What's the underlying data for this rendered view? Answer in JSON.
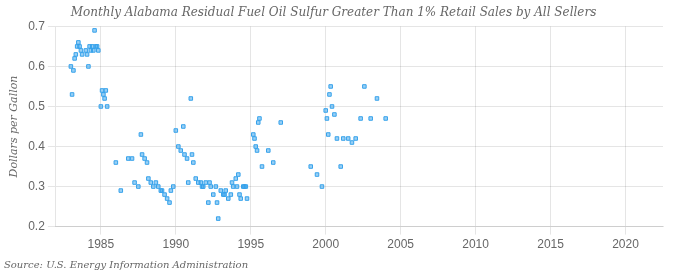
{
  "chart_data": {
    "type": "scatter",
    "title": "Monthly Alabama Residual Fuel Oil Sulfur Greater Than 1% Retail Sales by All Sellers",
    "ylabel": "Dollars per Gallon",
    "annotation": "Source: U.S. Energy Information Administration",
    "marker": "square",
    "grid": true,
    "xlim": [
      1982.0,
      2022.5
    ],
    "ylim": [
      0.2,
      0.7
    ],
    "xticks": [
      1985,
      1990,
      1995,
      2000,
      2005,
      2010,
      2015,
      2020
    ],
    "yticks": [
      0.2,
      0.3,
      0.4,
      0.5,
      0.6,
      0.7
    ],
    "x": [
      1983.0,
      1983.08,
      1983.17,
      1983.25,
      1983.33,
      1983.42,
      1983.5,
      1983.58,
      1983.67,
      1983.75,
      1984.0,
      1984.08,
      1984.17,
      1984.25,
      1984.33,
      1984.42,
      1984.5,
      1984.58,
      1984.67,
      1984.75,
      1984.83,
      1985.0,
      1985.08,
      1985.17,
      1985.25,
      1985.33,
      1985.42,
      1986.0,
      1986.33,
      1986.83,
      1987.08,
      1987.25,
      1987.5,
      1987.67,
      1987.75,
      1987.92,
      1988.08,
      1988.17,
      1988.33,
      1988.5,
      1988.67,
      1988.83,
      1989.0,
      1989.08,
      1989.25,
      1989.42,
      1989.58,
      1989.67,
      1989.83,
      1990.0,
      1990.17,
      1990.33,
      1990.5,
      1990.58,
      1990.75,
      1990.83,
      1991.0,
      1991.08,
      1991.17,
      1991.33,
      1991.5,
      1991.67,
      1991.75,
      1991.83,
      1992.0,
      1992.17,
      1992.25,
      1992.33,
      1992.5,
      1992.67,
      1992.75,
      1992.83,
      1993.0,
      1993.17,
      1993.25,
      1993.33,
      1993.5,
      1993.67,
      1993.75,
      1993.83,
      1994.0,
      1994.08,
      1994.17,
      1994.25,
      1994.33,
      1994.5,
      1994.58,
      1994.67,
      1994.75,
      1995.17,
      1995.25,
      1995.33,
      1995.42,
      1995.5,
      1995.58,
      1995.75,
      1996.17,
      1996.5,
      1997.0,
      1999.0,
      1999.42,
      1999.75,
      2000.0,
      2000.08,
      2000.17,
      2000.25,
      2000.33,
      2000.42,
      2000.58,
      2000.75,
      2001.0,
      2001.17,
      2001.5,
      2001.75,
      2002.0,
      2002.33,
      2002.58,
      2003.0,
      2003.42,
      2004.0
    ],
    "values": [
      0.6,
      0.53,
      0.59,
      0.62,
      0.63,
      0.65,
      0.66,
      0.65,
      0.64,
      0.63,
      0.64,
      0.63,
      0.6,
      0.65,
      0.64,
      0.65,
      0.64,
      0.69,
      0.65,
      0.65,
      0.64,
      0.5,
      0.54,
      0.53,
      0.52,
      0.54,
      0.5,
      0.36,
      0.29,
      0.37,
      0.37,
      0.31,
      0.3,
      0.43,
      0.38,
      0.37,
      0.36,
      0.32,
      0.31,
      0.3,
      0.31,
      0.3,
      0.29,
      0.29,
      0.28,
      0.27,
      0.26,
      0.29,
      0.3,
      0.44,
      0.4,
      0.39,
      0.45,
      0.38,
      0.37,
      0.31,
      0.52,
      0.38,
      0.36,
      0.32,
      0.31,
      0.31,
      0.3,
      0.3,
      0.31,
      0.26,
      0.31,
      0.3,
      0.28,
      0.3,
      0.26,
      0.22,
      0.29,
      0.28,
      0.28,
      0.29,
      0.27,
      0.28,
      0.31,
      0.3,
      0.32,
      0.3,
      0.33,
      0.28,
      0.27,
      0.3,
      0.3,
      0.3,
      0.27,
      0.43,
      0.42,
      0.4,
      0.39,
      0.46,
      0.47,
      0.35,
      0.39,
      0.36,
      0.46,
      0.35,
      0.33,
      0.3,
      0.49,
      0.47,
      0.43,
      0.53,
      0.55,
      0.5,
      0.48,
      0.42,
      0.35,
      0.42,
      0.42,
      0.41,
      0.42,
      0.47,
      0.55,
      0.47,
      0.52,
      0.47
    ]
  }
}
